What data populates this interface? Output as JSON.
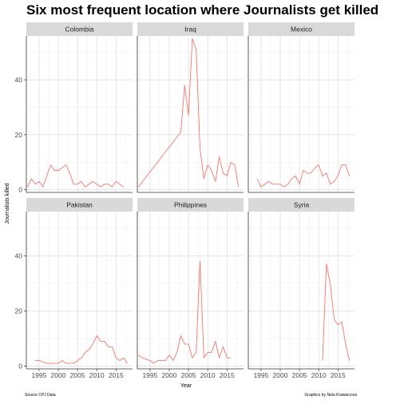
{
  "chart_data": {
    "type": "line",
    "title": "Six most frequent location where Journalists get killed",
    "xlabel": "Year",
    "ylabel": "Journalists killed",
    "x_ticks": [
      1995,
      2000,
      2005,
      2010,
      2015
    ],
    "y_ticks": [
      0,
      20,
      40
    ],
    "xlim": [
      1991.7,
      2019.3
    ],
    "ylim": [
      -1,
      56
    ],
    "grid": true,
    "line_color": "#F8766D",
    "strip_color": "#d9d9d9",
    "caption_left": "Source CPJ Data",
    "caption_right": "Graphics by Nela Krawiecova",
    "panels": [
      {
        "name": "Colombia",
        "x": [
          1992,
          1993,
          1994,
          1995,
          1996,
          1997,
          1998,
          1999,
          2000,
          2001,
          2002,
          2003,
          2004,
          2005,
          2006,
          2007,
          2008,
          2009,
          2010,
          2011,
          2012,
          2013,
          2014,
          2015,
          2016,
          2017,
          2018
        ],
        "y": [
          1,
          4,
          2,
          3,
          1,
          5,
          9,
          7,
          7,
          8,
          9,
          6,
          2,
          2,
          3,
          1,
          2,
          3,
          2,
          1,
          2,
          2,
          1,
          3,
          2,
          1,
          null
        ]
      },
      {
        "name": "Iraq",
        "x": [
          1992,
          2003,
          2004,
          2005,
          2006,
          2007,
          2008,
          2009,
          2010,
          2011,
          2012,
          2013,
          2014,
          2015,
          2016,
          2017,
          2018
        ],
        "y": [
          1,
          21,
          38,
          27,
          55,
          51,
          15,
          4,
          9,
          7,
          3,
          12,
          6,
          5,
          10,
          9,
          1
        ]
      },
      {
        "name": "Mexico",
        "x": [
          1994,
          1995,
          1996,
          1997,
          1998,
          1999,
          2000,
          2001,
          2002,
          2003,
          2004,
          2005,
          2006,
          2007,
          2008,
          2009,
          2010,
          2011,
          2012,
          2013,
          2014,
          2015,
          2016,
          2017,
          2018
        ],
        "y": [
          4,
          1,
          2,
          3,
          2,
          2,
          2,
          1,
          2,
          4,
          5,
          2,
          7,
          6,
          6,
          8,
          9,
          5,
          6,
          2,
          3,
          5,
          9,
          9,
          5
        ]
      },
      {
        "name": "Pakistan",
        "x": [
          1994,
          1995,
          1996,
          1997,
          1998,
          1999,
          2000,
          2001,
          2002,
          2003,
          2004,
          2005,
          2006,
          2007,
          2008,
          2009,
          2010,
          2011,
          2012,
          2013,
          2014,
          2015,
          2016,
          2017,
          2018
        ],
        "y": [
          2,
          2,
          1.5,
          1,
          1,
          1,
          1,
          2,
          1,
          1,
          1,
          2,
          3,
          5,
          6,
          8,
          11,
          9,
          9,
          7,
          7,
          3,
          2,
          3,
          1
        ]
      },
      {
        "name": "Philippines",
        "x": [
          1992,
          1993,
          1994,
          1995,
          1996,
          1997,
          1998,
          1999,
          2000,
          2001,
          2002,
          2003,
          2004,
          2005,
          2006,
          2007,
          2008,
          2009,
          2010,
          2011,
          2012,
          2013,
          2014,
          2015,
          2016,
          2017,
          2018
        ],
        "y": [
          4,
          3,
          2.5,
          2,
          1,
          2,
          2,
          2,
          4,
          2,
          5,
          11,
          8,
          8,
          3,
          5,
          38,
          3,
          5,
          5,
          9,
          3,
          7,
          3,
          3,
          null,
          null
        ]
      },
      {
        "name": "Syria",
        "x": [
          2011,
          2012,
          2013,
          2014,
          2015,
          2016,
          2017,
          2018
        ],
        "y": [
          2,
          37,
          30,
          17,
          15,
          16,
          8,
          2
        ]
      }
    ]
  }
}
